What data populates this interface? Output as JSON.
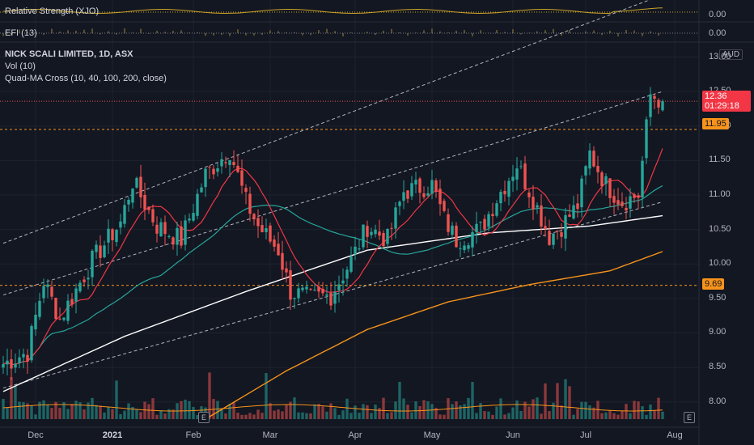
{
  "indicators": {
    "rsi_label": "Relative Strength (XJO)",
    "rsi_value": "0.00",
    "efi_label": "EFI (13)",
    "efi_value": "0.00"
  },
  "header": {
    "symbol_line": "NICK SCALI LIMITED, 1D, ASX",
    "vol_line": "Vol (10)",
    "ma_line": "Quad-MA Cross (10, 40, 100, 200, close)"
  },
  "currency": "AUD",
  "price_tags": {
    "last_price": "12.36",
    "countdown": "01:29:18",
    "level_upper": "11.95",
    "level_lower": "9.69"
  },
  "colors": {
    "background": "#131722",
    "up": "#26a69a",
    "down": "#ef5350",
    "ma10": "#f23645",
    "ma40": "#26a69a",
    "ma100": "#ffffff",
    "ma200": "#f7931a",
    "volume_ma": "#f7931a",
    "level_line": "#f7931a",
    "rsi_line": "#c9a227"
  },
  "earnings_badge": "E",
  "chart_data": {
    "type": "candlestick",
    "title": "NICK SCALI LIMITED, 1D, ASX",
    "y_ticks": [
      "13.00",
      "12.50",
      "12.00",
      "11.50",
      "11.00",
      "10.50",
      "10.00",
      "9.50",
      "9.00",
      "8.50",
      "8.00"
    ],
    "y_range": [
      7.75,
      13.1
    ],
    "x_ticks": [
      {
        "label": "Dec",
        "index": 8
      },
      {
        "label": "2021",
        "index": 27
      },
      {
        "label": "Feb",
        "index": 47
      },
      {
        "label": "Mar",
        "index": 66
      },
      {
        "label": "Apr",
        "index": 87
      },
      {
        "label": "May",
        "index": 106
      },
      {
        "label": "Jun",
        "index": 126
      },
      {
        "label": "Jul",
        "index": 144
      },
      {
        "label": "Aug",
        "index": 166
      }
    ],
    "x_label_bold": "2021",
    "candle_count": 164,
    "ohlc_anchors": [
      {
        "i": 0,
        "close": 8.55
      },
      {
        "i": 6,
        "close": 8.72
      },
      {
        "i": 10,
        "close": 9.75
      },
      {
        "i": 14,
        "close": 9.2
      },
      {
        "i": 22,
        "close": 10.05
      },
      {
        "i": 29,
        "close": 10.6
      },
      {
        "i": 32,
        "close": 11.2
      },
      {
        "i": 38,
        "close": 10.55
      },
      {
        "i": 44,
        "close": 10.35
      },
      {
        "i": 50,
        "close": 11.3
      },
      {
        "i": 56,
        "close": 11.65
      },
      {
        "i": 60,
        "close": 10.9
      },
      {
        "i": 63,
        "close": 10.55
      },
      {
        "i": 68,
        "close": 10.2
      },
      {
        "i": 71,
        "close": 9.6
      },
      {
        "i": 76,
        "close": 9.5
      },
      {
        "i": 81,
        "close": 9.55
      },
      {
        "i": 86,
        "close": 10.05
      },
      {
        "i": 90,
        "close": 10.55
      },
      {
        "i": 95,
        "close": 10.35
      },
      {
        "i": 99,
        "close": 11.05
      },
      {
        "i": 106,
        "close": 11.15
      },
      {
        "i": 109,
        "close": 10.65
      },
      {
        "i": 112,
        "close": 10.35
      },
      {
        "i": 118,
        "close": 10.5
      },
      {
        "i": 122,
        "close": 10.95
      },
      {
        "i": 127,
        "close": 11.45
      },
      {
        "i": 131,
        "close": 10.95
      },
      {
        "i": 135,
        "close": 10.4
      },
      {
        "i": 138,
        "close": 10.55
      },
      {
        "i": 142,
        "close": 10.85
      },
      {
        "i": 145,
        "close": 11.6
      },
      {
        "i": 149,
        "close": 11.15
      },
      {
        "i": 153,
        "close": 10.9
      },
      {
        "i": 157,
        "close": 11.0
      },
      {
        "i": 160,
        "close": 12.45
      },
      {
        "i": 163,
        "close": 12.36
      }
    ],
    "moving_averages": [
      {
        "name": "MA 10",
        "period": 10
      },
      {
        "name": "MA 40",
        "period": 40
      },
      {
        "name": "MA 100",
        "period": 100
      },
      {
        "name": "MA 200",
        "period": 200
      }
    ],
    "ma100_anchors": [
      {
        "i": 0,
        "v": 8.15
      },
      {
        "i": 30,
        "v": 8.95
      },
      {
        "i": 60,
        "v": 9.6
      },
      {
        "i": 90,
        "v": 10.2
      },
      {
        "i": 120,
        "v": 10.45
      },
      {
        "i": 145,
        "v": 10.55
      },
      {
        "i": 163,
        "v": 10.7
      }
    ],
    "ma200_anchors": [
      {
        "i": 50,
        "v": 7.75
      },
      {
        "i": 70,
        "v": 8.45
      },
      {
        "i": 90,
        "v": 9.05
      },
      {
        "i": 110,
        "v": 9.45
      },
      {
        "i": 130,
        "v": 9.7
      },
      {
        "i": 150,
        "v": 9.9
      },
      {
        "i": 163,
        "v": 10.18
      }
    ],
    "horizontal_levels": [
      11.95,
      9.69
    ],
    "channel_lines": [
      {
        "i0": 0,
        "v0": 10.3,
        "i1": 163,
        "v1": 13.9
      },
      {
        "i0": 0,
        "v0": 9.55,
        "i1": 163,
        "v1": 12.5
      },
      {
        "i0": 0,
        "v0": 8.2,
        "i1": 163,
        "v1": 10.9
      }
    ]
  }
}
